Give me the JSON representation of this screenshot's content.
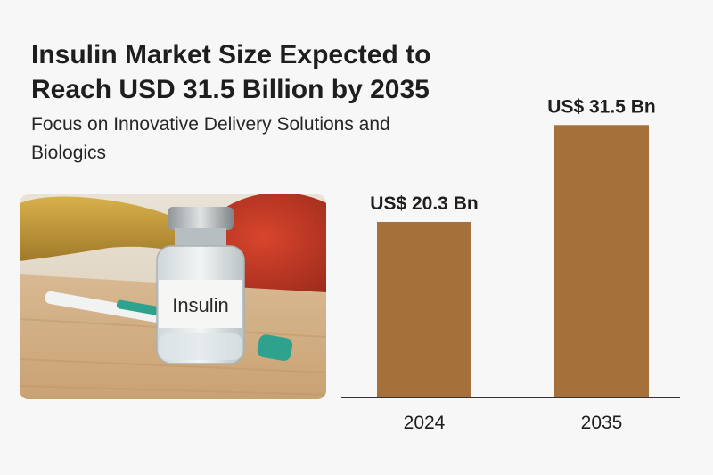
{
  "title": "Insulin Market Size Expected to Reach USD 31.5 Billion by 2035",
  "subtitle": "Focus on Innovative Delivery Solutions and Biologics",
  "photo": {
    "vial_label": "Insulin"
  },
  "colors": {
    "bar": "#a5703a",
    "axis": "#333333",
    "background": "#f7f7f7"
  },
  "chart_data": {
    "type": "bar",
    "categories": [
      "2024",
      "2035"
    ],
    "values": [
      20.3,
      31.5
    ],
    "data_labels": [
      "US$ 20.3 Bn",
      "US$ 31.5 Bn"
    ],
    "title": "",
    "xlabel": "",
    "ylabel": "",
    "ylim": [
      0,
      34
    ],
    "grid": false
  }
}
